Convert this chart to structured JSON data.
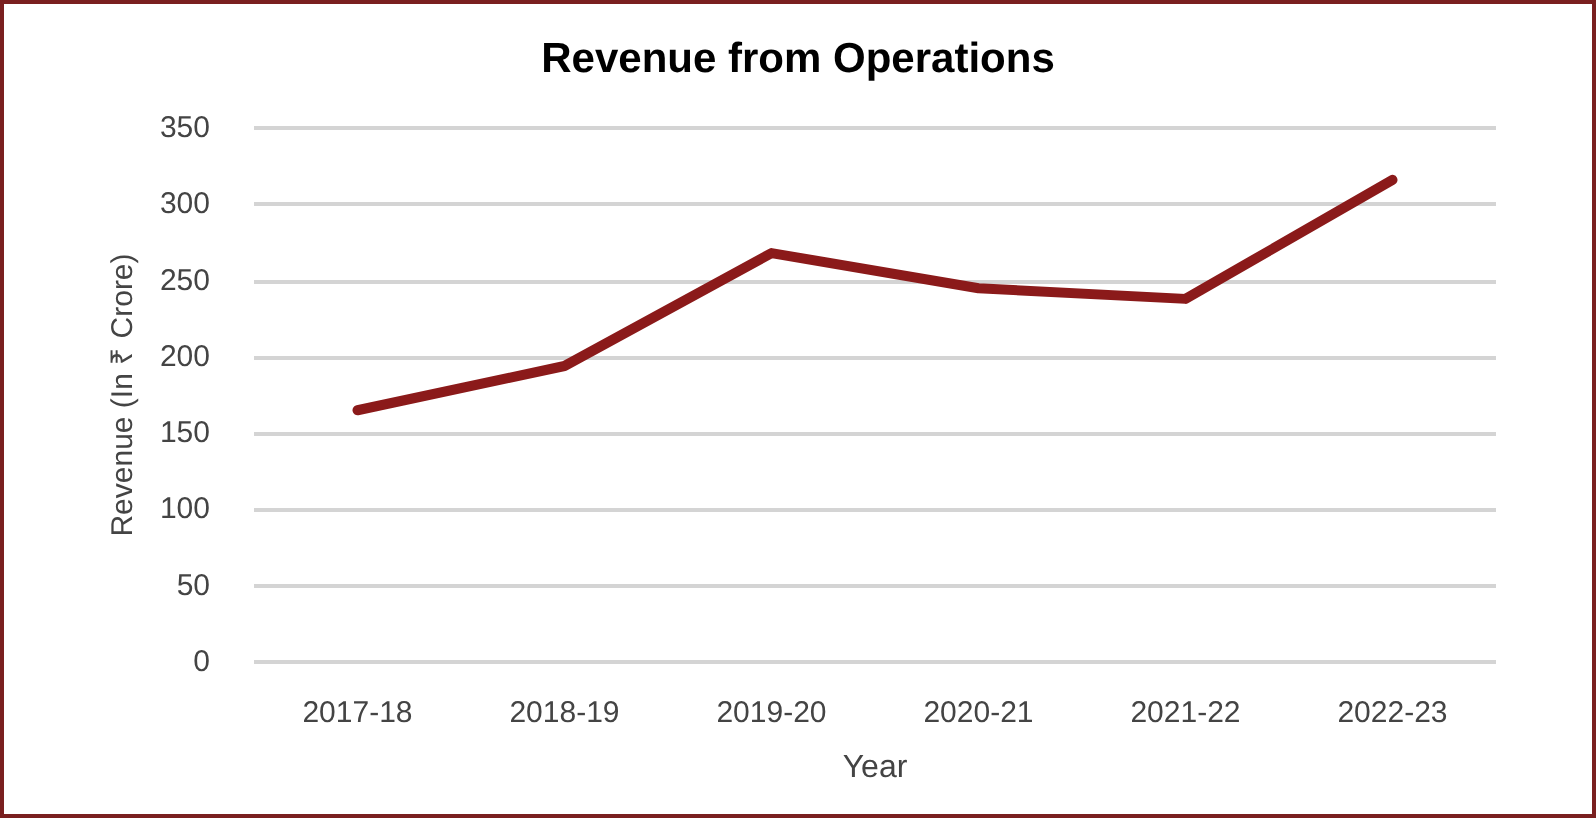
{
  "chart_data": {
    "type": "line",
    "title": "Revenue from Operations",
    "xlabel": "Year",
    "ylabel": "Revenue (In ₹ Crore)",
    "categories": [
      "2017-18",
      "2018-19",
      "2019-20",
      "2020-21",
      "2021-22",
      "2022-23"
    ],
    "series": [
      {
        "color": "#8b1a1a",
        "values": [
          165,
          194,
          268,
          245,
          238,
          316
        ]
      }
    ],
    "ylim": [
      0,
      350
    ],
    "yticks": [
      0,
      50,
      100,
      150,
      200,
      250,
      300,
      350
    ],
    "grid": "y",
    "marker": "none",
    "line_style": "solid"
  }
}
